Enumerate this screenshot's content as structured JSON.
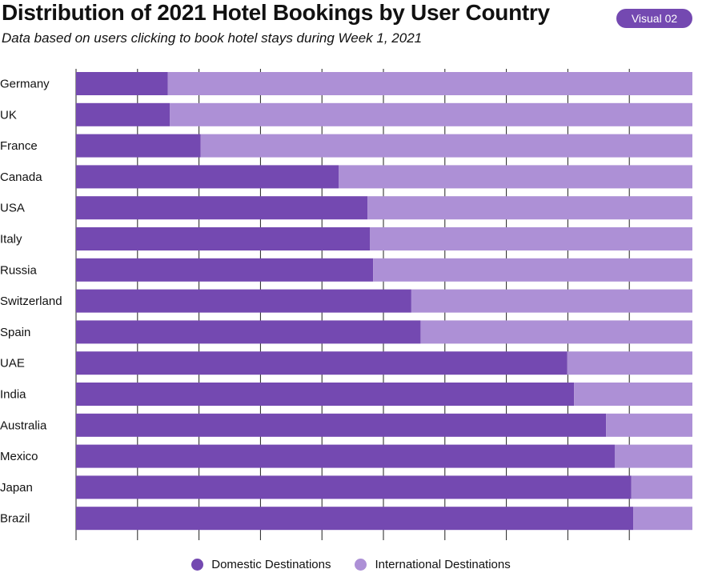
{
  "header": {
    "title": "Distribution of 2021 Hotel Bookings by User Country",
    "subtitle": "Data based on users clicking to book hotel stays during Week 1, 2021",
    "badge": "Visual 02"
  },
  "colors": {
    "domestic": "#7449b1",
    "international": "#ad90d6",
    "grid": "#222222",
    "badge": "#7449b1"
  },
  "chart_data": {
    "type": "bar",
    "orientation": "horizontal",
    "stacked": "100%",
    "xlim": [
      0,
      100
    ],
    "grid": true,
    "legend_position": "bottom",
    "categories": [
      "Germany",
      "UK",
      "France",
      "Canada",
      "USA",
      "Italy",
      "Russia",
      "Switzerland",
      "Spain",
      "UAE",
      "India",
      "Australia",
      "Mexico",
      "Japan",
      "Brazil"
    ],
    "series": [
      {
        "name": "Domestic Destinations",
        "values": [
          14.9,
          15.2,
          20.2,
          42.6,
          47.3,
          47.7,
          48.2,
          54.4,
          55.9,
          79.7,
          80.8,
          86.0,
          87.4,
          90.1,
          90.4
        ]
      },
      {
        "name": "International Destinations",
        "values": [
          85.1,
          84.8,
          79.8,
          57.4,
          52.7,
          52.3,
          51.8,
          45.6,
          44.1,
          20.3,
          19.2,
          14.0,
          12.6,
          9.9,
          9.6
        ]
      }
    ]
  }
}
